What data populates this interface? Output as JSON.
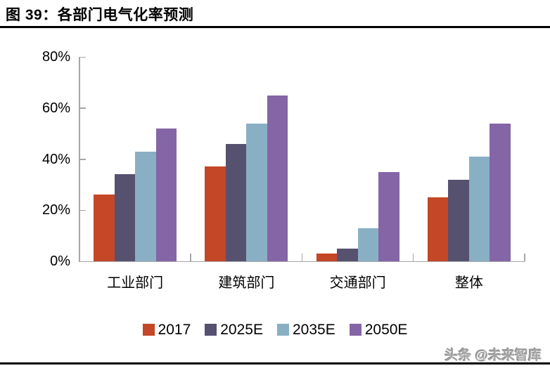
{
  "header": {
    "title": "图 39：各部门电气化率预测"
  },
  "footer": {
    "watermark": "头条 @未来智库"
  },
  "chart_data": {
    "type": "bar",
    "title": "各部门电气化率预测",
    "categories": [
      "工业部门",
      "建筑部门",
      "交通部门",
      "整体"
    ],
    "series": [
      {
        "name": "2017",
        "color": "#c44727",
        "values": [
          26,
          37,
          3,
          25
        ]
      },
      {
        "name": "2025E",
        "color": "#575170",
        "values": [
          34,
          46,
          5,
          32
        ]
      },
      {
        "name": "2035E",
        "color": "#89afc4",
        "values": [
          43,
          54,
          13,
          41
        ]
      },
      {
        "name": "2050E",
        "color": "#8465a6",
        "values": [
          52,
          65,
          35,
          54
        ]
      }
    ],
    "ylim": [
      0,
      80
    ],
    "yticks": [
      {
        "value": 0,
        "label": "0%"
      },
      {
        "value": 20,
        "label": "20%"
      },
      {
        "value": 40,
        "label": "40%"
      },
      {
        "value": 60,
        "label": "60%"
      },
      {
        "value": 80,
        "label": "80%"
      }
    ],
    "unit": "%",
    "grid": false,
    "legend_position": "bottom",
    "axis_color": "#a6a6a6"
  }
}
